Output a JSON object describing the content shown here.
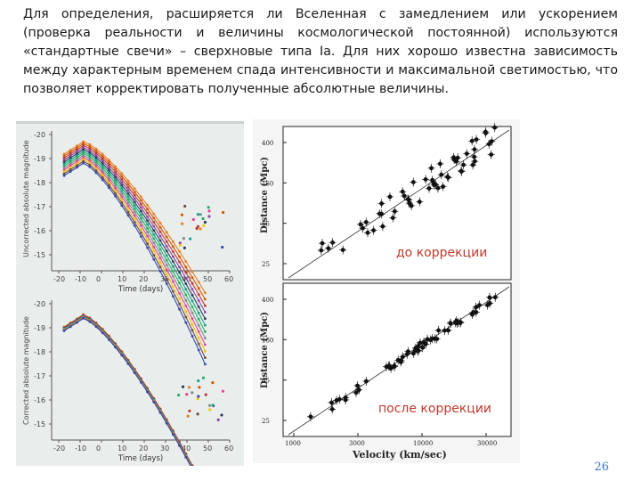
{
  "slide": {
    "paragraph": "Для определения, расширяется ли Вселенная с замедлением или ускорением (проверка реальности и величины космологической постоянной) используются «стандартные свечи» – сверхновые типа Ia. Для них хорошо известна зависимость между характерным временем спада интенсивности и максимальной светимостью, что позволяет корректировать полученные абсолютные величины.",
    "page_number": "26"
  },
  "left_figure": {
    "top": {
      "ylabel": "Uncorrected absolute magnitude",
      "xlabel": "Time (days)",
      "yticks": [
        "-20",
        "-19",
        "-18",
        "-17",
        "-16",
        "-15"
      ],
      "xticks": [
        "-20",
        "-10",
        "0",
        "10",
        "20",
        "30",
        "40",
        "50",
        "60"
      ]
    },
    "bottom": {
      "ylabel": "Corrected absolute magnitude",
      "xlabel": "Time (days)",
      "yticks": [
        "-20",
        "-19",
        "-18",
        "-17",
        "-16",
        "-15"
      ],
      "xticks": [
        "-20",
        "-10",
        "0",
        "10",
        "20",
        "30",
        "40",
        "50",
        "60"
      ]
    },
    "colors": [
      "#e67e22",
      "#d35400",
      "#c0392b",
      "#8e44ad",
      "#2c3e50",
      "#16a085",
      "#27ae60",
      "#7f8c8d",
      "#e84393",
      "#f1c40f",
      "#6d4c41",
      "#3949ab"
    ]
  },
  "right_figure": {
    "top": {
      "ylabel": "Distance (Mpc)",
      "yticks": [
        "25",
        "65",
        "160",
        "400"
      ],
      "caption": "до коррекции"
    },
    "bottom": {
      "ylabel": "Distance (Mpc)",
      "yticks": [
        "25",
        "65",
        "160",
        "400"
      ],
      "xticks": [
        "1000",
        "3000",
        "10000",
        "30000"
      ],
      "xlabel": "Velocity (km/sec)",
      "caption": "после коррекции"
    }
  }
}
